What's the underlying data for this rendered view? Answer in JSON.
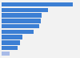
{
  "chart_data": {
    "type": "bar",
    "orientation": "horizontal",
    "categories": [
      null,
      null,
      null,
      null,
      null,
      null,
      null,
      null,
      null,
      null
    ],
    "values": [
      740,
      480,
      420,
      410,
      390,
      330,
      220,
      190,
      170,
      80
    ],
    "colors": [
      "#3c7fd4",
      "#3c7fd4",
      "#3c7fd4",
      "#3c7fd4",
      "#3c7fd4",
      "#3c7fd4",
      "#3c7fd4",
      "#3c7fd4",
      "#3c7fd4",
      "#a8bbe8"
    ],
    "xlim": [
      0,
      800
    ],
    "grid": false,
    "tick_labels": false
  }
}
